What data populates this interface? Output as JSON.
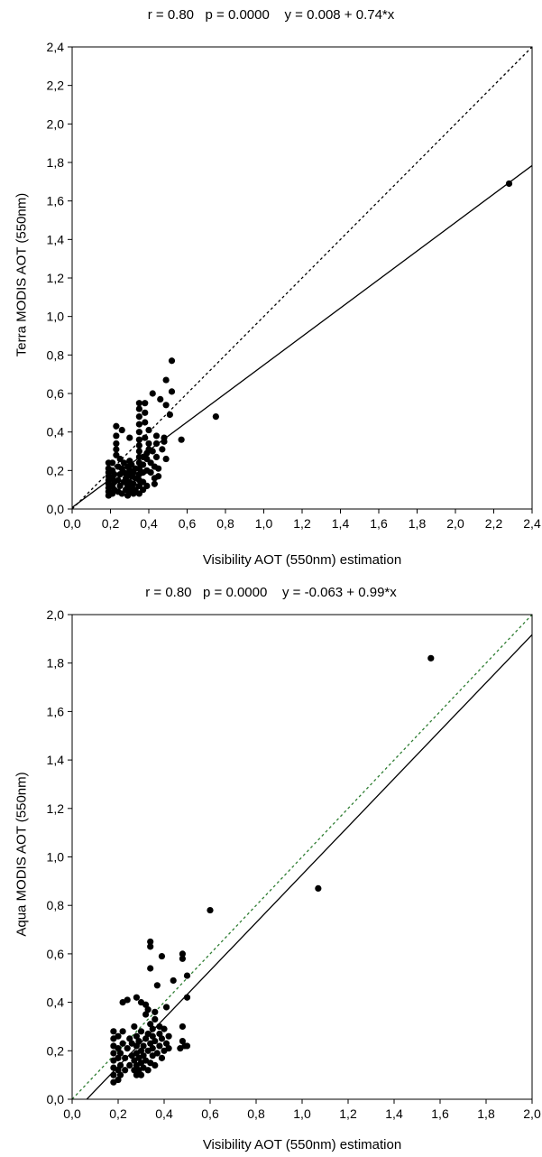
{
  "chart_data": [
    {
      "type": "scatter",
      "title": "r = 0.80   p = 0.0000    y = 0.008 + 0.74*x",
      "xlabel": "Visibility AOT (550nm) estimation",
      "ylabel": "Terra MODIS AOT (550nm)",
      "xlim": [
        0,
        2.4
      ],
      "ylim": [
        0,
        2.4
      ],
      "x_ticks": [
        "0,0",
        "0,2",
        "0,4",
        "0,6",
        "0,8",
        "1,0",
        "1,2",
        "1,4",
        "1,6",
        "1,8",
        "2,0",
        "2,2",
        "2,4"
      ],
      "y_ticks": [
        "0,0",
        "0,2",
        "0,4",
        "0,6",
        "0,8",
        "1,0",
        "1,2",
        "1,4",
        "1,6",
        "1,8",
        "2,0",
        "2,2",
        "2,4"
      ],
      "grid": false,
      "regression_line": {
        "intercept": 0.008,
        "slope": 0.74
      },
      "reference_line": {
        "intercept": 0,
        "slope": 1,
        "style": "dotted",
        "color": "#000000"
      },
      "points": [
        [
          0.19,
          0.07
        ],
        [
          0.19,
          0.09
        ],
        [
          0.19,
          0.11
        ],
        [
          0.19,
          0.13
        ],
        [
          0.19,
          0.15
        ],
        [
          0.19,
          0.17
        ],
        [
          0.19,
          0.19
        ],
        [
          0.19,
          0.21
        ],
        [
          0.19,
          0.24
        ],
        [
          0.21,
          0.08
        ],
        [
          0.21,
          0.12
        ],
        [
          0.21,
          0.16
        ],
        [
          0.21,
          0.2
        ],
        [
          0.21,
          0.24
        ],
        [
          0.22,
          0.1
        ],
        [
          0.22,
          0.14
        ],
        [
          0.22,
          0.18
        ],
        [
          0.23,
          0.28
        ],
        [
          0.23,
          0.31
        ],
        [
          0.23,
          0.34
        ],
        [
          0.23,
          0.38
        ],
        [
          0.23,
          0.43
        ],
        [
          0.24,
          0.09
        ],
        [
          0.24,
          0.15
        ],
        [
          0.24,
          0.22
        ],
        [
          0.25,
          0.12
        ],
        [
          0.25,
          0.18
        ],
        [
          0.25,
          0.26
        ],
        [
          0.26,
          0.41
        ],
        [
          0.26,
          0.08
        ],
        [
          0.26,
          0.21
        ],
        [
          0.27,
          0.14
        ],
        [
          0.27,
          0.19
        ],
        [
          0.27,
          0.24
        ],
        [
          0.28,
          0.1
        ],
        [
          0.28,
          0.16
        ],
        [
          0.29,
          0.07
        ],
        [
          0.29,
          0.12
        ],
        [
          0.29,
          0.18
        ],
        [
          0.29,
          0.22
        ],
        [
          0.3,
          0.09
        ],
        [
          0.3,
          0.14
        ],
        [
          0.3,
          0.2
        ],
        [
          0.3,
          0.25
        ],
        [
          0.3,
          0.37
        ],
        [
          0.31,
          0.11
        ],
        [
          0.31,
          0.17
        ],
        [
          0.31,
          0.23
        ],
        [
          0.32,
          0.08
        ],
        [
          0.32,
          0.13
        ],
        [
          0.32,
          0.19
        ],
        [
          0.33,
          0.1
        ],
        [
          0.33,
          0.16
        ],
        [
          0.33,
          0.21
        ],
        [
          0.35,
          0.08
        ],
        [
          0.35,
          0.12
        ],
        [
          0.35,
          0.15
        ],
        [
          0.35,
          0.18
        ],
        [
          0.35,
          0.21
        ],
        [
          0.35,
          0.24
        ],
        [
          0.35,
          0.27
        ],
        [
          0.35,
          0.3
        ],
        [
          0.35,
          0.33
        ],
        [
          0.35,
          0.36
        ],
        [
          0.35,
          0.4
        ],
        [
          0.35,
          0.44
        ],
        [
          0.35,
          0.48
        ],
        [
          0.35,
          0.52
        ],
        [
          0.35,
          0.55
        ],
        [
          0.37,
          0.1
        ],
        [
          0.37,
          0.14
        ],
        [
          0.37,
          0.19
        ],
        [
          0.37,
          0.23
        ],
        [
          0.37,
          0.27
        ],
        [
          0.38,
          0.37
        ],
        [
          0.38,
          0.45
        ],
        [
          0.38,
          0.5
        ],
        [
          0.38,
          0.55
        ],
        [
          0.39,
          0.12
        ],
        [
          0.39,
          0.2
        ],
        [
          0.39,
          0.26
        ],
        [
          0.39,
          0.29
        ],
        [
          0.4,
          0.31
        ],
        [
          0.4,
          0.34
        ],
        [
          0.4,
          0.41
        ],
        [
          0.41,
          0.19
        ],
        [
          0.41,
          0.24
        ],
        [
          0.42,
          0.3
        ],
        [
          0.42,
          0.6
        ],
        [
          0.43,
          0.13
        ],
        [
          0.43,
          0.16
        ],
        [
          0.43,
          0.22
        ],
        [
          0.44,
          0.27
        ],
        [
          0.44,
          0.34
        ],
        [
          0.44,
          0.38
        ],
        [
          0.45,
          0.17
        ],
        [
          0.45,
          0.21
        ],
        [
          0.46,
          0.57
        ],
        [
          0.47,
          0.31
        ],
        [
          0.48,
          0.35
        ],
        [
          0.48,
          0.37
        ],
        [
          0.49,
          0.26
        ],
        [
          0.49,
          0.54
        ],
        [
          0.49,
          0.67
        ],
        [
          0.51,
          0.49
        ],
        [
          0.52,
          0.61
        ],
        [
          0.52,
          0.77
        ],
        [
          0.57,
          0.36
        ],
        [
          0.75,
          0.48
        ],
        [
          2.28,
          1.69
        ]
      ]
    },
    {
      "type": "scatter",
      "title": "r = 0.80   p = 0.0000    y = -0.063 + 0.99*x",
      "xlabel": "Visibility AOT (550nm) estimation",
      "ylabel": "Aqua MODIS AOT (550nm)",
      "xlim": [
        0,
        2.0
      ],
      "ylim": [
        0,
        2.0
      ],
      "x_ticks": [
        "0,0",
        "0,2",
        "0,4",
        "0,6",
        "0,8",
        "1,0",
        "1,2",
        "1,4",
        "1,6",
        "1,8",
        "2,0"
      ],
      "y_ticks": [
        "0,0",
        "0,2",
        "0,4",
        "0,6",
        "0,8",
        "1,0",
        "1,2",
        "1,4",
        "1,6",
        "1,8",
        "2,0"
      ],
      "grid": false,
      "regression_line": {
        "intercept": -0.063,
        "slope": 0.99
      },
      "reference_line": {
        "intercept": 0,
        "slope": 1,
        "style": "dotted",
        "color": "#2e7d32"
      },
      "points": [
        [
          0.18,
          0.07
        ],
        [
          0.18,
          0.1
        ],
        [
          0.18,
          0.13
        ],
        [
          0.18,
          0.16
        ],
        [
          0.18,
          0.19
        ],
        [
          0.18,
          0.22
        ],
        [
          0.18,
          0.25
        ],
        [
          0.18,
          0.28
        ],
        [
          0.2,
          0.08
        ],
        [
          0.2,
          0.12
        ],
        [
          0.2,
          0.17
        ],
        [
          0.2,
          0.21
        ],
        [
          0.2,
          0.26
        ],
        [
          0.21,
          0.1
        ],
        [
          0.21,
          0.14
        ],
        [
          0.21,
          0.19
        ],
        [
          0.22,
          0.23
        ],
        [
          0.22,
          0.28
        ],
        [
          0.22,
          0.4
        ],
        [
          0.23,
          0.12
        ],
        [
          0.23,
          0.17
        ],
        [
          0.24,
          0.21
        ],
        [
          0.24,
          0.41
        ],
        [
          0.25,
          0.14
        ],
        [
          0.25,
          0.25
        ],
        [
          0.26,
          0.18
        ],
        [
          0.26,
          0.23
        ],
        [
          0.27,
          0.12
        ],
        [
          0.27,
          0.16
        ],
        [
          0.27,
          0.3
        ],
        [
          0.28,
          0.1
        ],
        [
          0.28,
          0.14
        ],
        [
          0.28,
          0.19
        ],
        [
          0.28,
          0.22
        ],
        [
          0.28,
          0.26
        ],
        [
          0.28,
          0.42
        ],
        [
          0.29,
          0.12
        ],
        [
          0.29,
          0.17
        ],
        [
          0.29,
          0.24
        ],
        [
          0.3,
          0.1
        ],
        [
          0.3,
          0.15
        ],
        [
          0.3,
          0.2
        ],
        [
          0.3,
          0.28
        ],
        [
          0.3,
          0.4
        ],
        [
          0.31,
          0.13
        ],
        [
          0.31,
          0.18
        ],
        [
          0.31,
          0.22
        ],
        [
          0.32,
          0.16
        ],
        [
          0.32,
          0.25
        ],
        [
          0.32,
          0.35
        ],
        [
          0.32,
          0.39
        ],
        [
          0.33,
          0.12
        ],
        [
          0.33,
          0.2
        ],
        [
          0.33,
          0.27
        ],
        [
          0.33,
          0.37
        ],
        [
          0.34,
          0.15
        ],
        [
          0.34,
          0.23
        ],
        [
          0.34,
          0.31
        ],
        [
          0.34,
          0.54
        ],
        [
          0.34,
          0.63
        ],
        [
          0.34,
          0.65
        ],
        [
          0.35,
          0.18
        ],
        [
          0.35,
          0.21
        ],
        [
          0.35,
          0.26
        ],
        [
          0.35,
          0.29
        ],
        [
          0.36,
          0.14
        ],
        [
          0.36,
          0.24
        ],
        [
          0.36,
          0.33
        ],
        [
          0.36,
          0.36
        ],
        [
          0.37,
          0.19
        ],
        [
          0.37,
          0.47
        ],
        [
          0.38,
          0.22
        ],
        [
          0.38,
          0.27
        ],
        [
          0.38,
          0.3
        ],
        [
          0.39,
          0.17
        ],
        [
          0.39,
          0.25
        ],
        [
          0.39,
          0.59
        ],
        [
          0.4,
          0.2
        ],
        [
          0.4,
          0.29
        ],
        [
          0.41,
          0.23
        ],
        [
          0.41,
          0.38
        ],
        [
          0.42,
          0.21
        ],
        [
          0.42,
          0.26
        ],
        [
          0.44,
          0.49
        ],
        [
          0.47,
          0.21
        ],
        [
          0.48,
          0.24
        ],
        [
          0.48,
          0.3
        ],
        [
          0.48,
          0.58
        ],
        [
          0.48,
          0.6
        ],
        [
          0.49,
          0.22
        ],
        [
          0.5,
          0.51
        ],
        [
          0.5,
          0.42
        ],
        [
          0.5,
          0.22
        ],
        [
          0.6,
          0.78
        ],
        [
          1.07,
          0.87
        ],
        [
          1.56,
          1.82
        ]
      ]
    }
  ]
}
